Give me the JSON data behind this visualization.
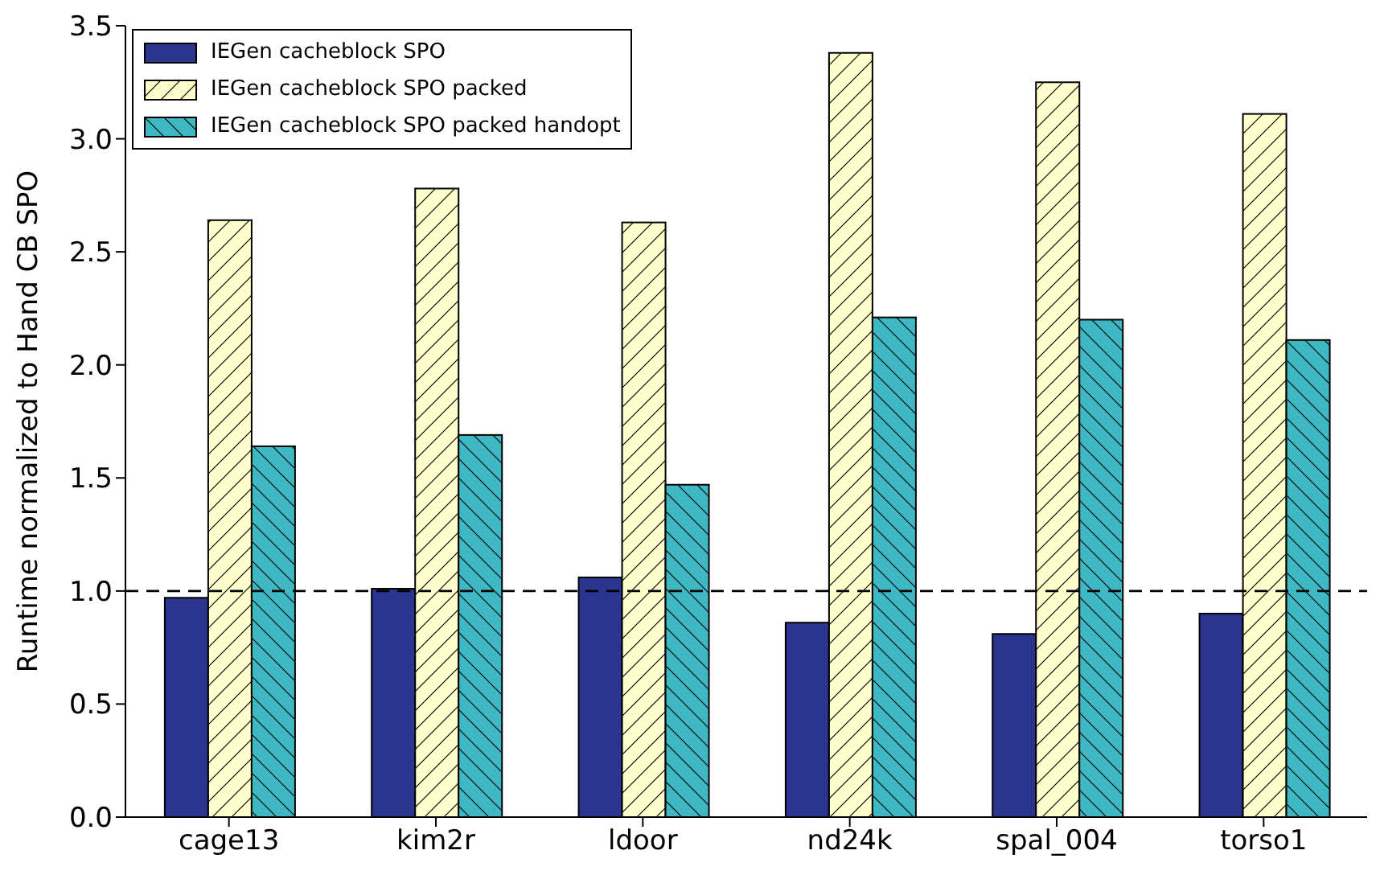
{
  "chart_data": {
    "type": "bar",
    "ylabel": "Runtime normalized to Hand CB SPO",
    "categories": [
      "cage13",
      "kim2r",
      "ldoor",
      "nd24k",
      "spal_004",
      "torso1"
    ],
    "series": [
      {
        "name": "IEGen cacheblock SPO",
        "color": "#2b3590",
        "values": [
          0.97,
          1.01,
          1.06,
          0.86,
          0.81,
          0.9
        ]
      },
      {
        "name": "IEGen cacheblock SPO packed",
        "color": "#ffffcc",
        "values": [
          2.64,
          2.78,
          2.63,
          3.38,
          3.25,
          3.11
        ]
      },
      {
        "name": "IEGen cacheblock SPO packed handopt",
        "color": "#40b8c4",
        "values": [
          1.64,
          1.69,
          1.47,
          2.21,
          2.2,
          2.11
        ]
      }
    ],
    "ylim": [
      0,
      3.5
    ],
    "yticks": [
      {
        "value": 0,
        "label": "0.0"
      },
      {
        "value": 0.5,
        "label": "0.5"
      },
      {
        "value": 1,
        "label": "1.0"
      },
      {
        "value": 1.5,
        "label": "1.5"
      },
      {
        "value": 2,
        "label": "2.0"
      },
      {
        "value": 2.5,
        "label": "2.5"
      },
      {
        "value": 3,
        "label": "3.0"
      },
      {
        "value": 3.5,
        "label": "3.5"
      }
    ],
    "ref_lines": [
      {
        "axis": "y",
        "value": 1,
        "line_style": "dashed",
        "color": "#000000"
      }
    ],
    "grid": false,
    "legend": "top left"
  }
}
